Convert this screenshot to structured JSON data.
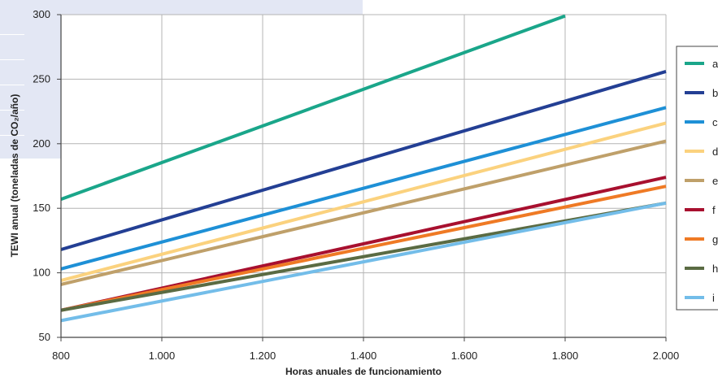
{
  "chart_data": {
    "type": "line",
    "title": "",
    "xlabel": "Horas anuales de funcionamiento",
    "ylabel": "TEWI anual (toneladas de CO₂/año)",
    "xlim": [
      800,
      2000
    ],
    "ylim": [
      50,
      300
    ],
    "x_ticks": [
      800,
      1000,
      1200,
      1400,
      1600,
      1800,
      2000
    ],
    "x_tick_labels": [
      "800",
      "1.000",
      "1.200",
      "1.400",
      "1.600",
      "1.800",
      "2.000"
    ],
    "y_ticks": [
      50,
      100,
      150,
      200,
      250,
      300
    ],
    "y_tick_labels": [
      "50",
      "100",
      "150",
      "200",
      "250",
      "300"
    ],
    "grid": true,
    "legend_position": "right",
    "series": [
      {
        "name": "a",
        "color": "#1aa68a",
        "points": [
          [
            800,
            157
          ],
          [
            1800,
            299
          ]
        ]
      },
      {
        "name": "b",
        "color": "#233f94",
        "points": [
          [
            800,
            118
          ],
          [
            2000,
            256
          ]
        ]
      },
      {
        "name": "c",
        "color": "#1e90d6",
        "points": [
          [
            800,
            103
          ],
          [
            2000,
            228
          ]
        ]
      },
      {
        "name": "d",
        "color": "#fbd27e",
        "points": [
          [
            800,
            94
          ],
          [
            2000,
            216
          ]
        ]
      },
      {
        "name": "e",
        "color": "#bfa06a",
        "points": [
          [
            800,
            91
          ],
          [
            2000,
            202
          ]
        ]
      },
      {
        "name": "f",
        "color": "#a8102f",
        "points": [
          [
            800,
            71
          ],
          [
            2000,
            174
          ]
        ]
      },
      {
        "name": "g",
        "color": "#ef7a25",
        "points": [
          [
            800,
            71
          ],
          [
            2000,
            167
          ]
        ]
      },
      {
        "name": "h",
        "color": "#5a6b43",
        "points": [
          [
            800,
            71
          ],
          [
            2000,
            154
          ]
        ]
      },
      {
        "name": "i",
        "color": "#73bde9",
        "points": [
          [
            800,
            63
          ],
          [
            2000,
            154
          ]
        ]
      }
    ]
  }
}
